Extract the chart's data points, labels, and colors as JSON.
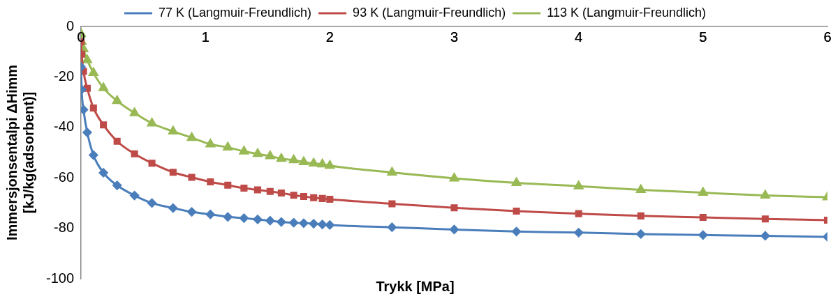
{
  "chart_data": {
    "type": "line",
    "xlabel": "Trykk [MPa]",
    "ylabel": "Immersjonsentalpi ΔHimm\n[kJ/kg(adsorbent)]",
    "x": [
      0,
      0.005,
      0.02,
      0.05,
      0.1,
      0.18,
      0.29,
      0.43,
      0.57,
      0.74,
      0.89,
      1.04,
      1.18,
      1.31,
      1.42,
      1.52,
      1.61,
      1.71,
      1.79,
      1.87,
      1.94,
      2.0,
      2.5,
      3,
      3.5,
      4,
      4.5,
      5,
      5.5,
      6
    ],
    "series": [
      {
        "name": "77 K (Langmuir-Freundlich)",
        "color": "#4a7ebb",
        "marker": "diamond",
        "values": [
          -16,
          -25,
          -33,
          -42,
          -51,
          -58,
          -63,
          -67,
          -70,
          -72,
          -73.5,
          -74.5,
          -75.5,
          -76,
          -76.5,
          -77,
          -77.5,
          -77.8,
          -78,
          -78.2,
          -78.5,
          -78.7,
          -79.6,
          -80.5,
          -81.3,
          -81.7,
          -82.3,
          -82.7,
          -83,
          -83.4
        ]
      },
      {
        "name": "93 K (Langmuir-Freundlich)",
        "color": "#be4b48",
        "marker": "square",
        "values": [
          -6,
          -11,
          -17.8,
          -24.5,
          -32.3,
          -39,
          -45.5,
          -50.5,
          -54.2,
          -57.8,
          -59.8,
          -61.6,
          -62.9,
          -64.1,
          -64.8,
          -65.4,
          -66,
          -66.9,
          -67.4,
          -67.9,
          -68.2,
          -68.5,
          -70.3,
          -71.9,
          -73.2,
          -74.2,
          -75.1,
          -75.7,
          -76.3,
          -76.8
        ]
      },
      {
        "name": "113 K (Langmuir-Freundlich)",
        "color": "#98b954",
        "marker": "triangle",
        "values": [
          -3,
          -6,
          -9,
          -13.3,
          -18.4,
          -24.4,
          -29.5,
          -34.3,
          -38.4,
          -41.6,
          -44.1,
          -46.7,
          -47.9,
          -49.5,
          -50.5,
          -51.4,
          -52.4,
          -53,
          -53.7,
          -54.3,
          -54.6,
          -55.2,
          -57.9,
          -60.2,
          -62,
          -63.3,
          -64.8,
          -65.9,
          -67,
          -67.7
        ]
      }
    ],
    "xlim": [
      0,
      6
    ],
    "xticks": [
      0,
      1,
      2,
      3,
      4,
      5,
      6
    ],
    "ylim": [
      -100,
      0
    ],
    "yticks": [
      -100,
      -80,
      -60,
      -40,
      -20,
      0
    ],
    "grid": false,
    "legend": "top",
    "line_style": "solid"
  }
}
